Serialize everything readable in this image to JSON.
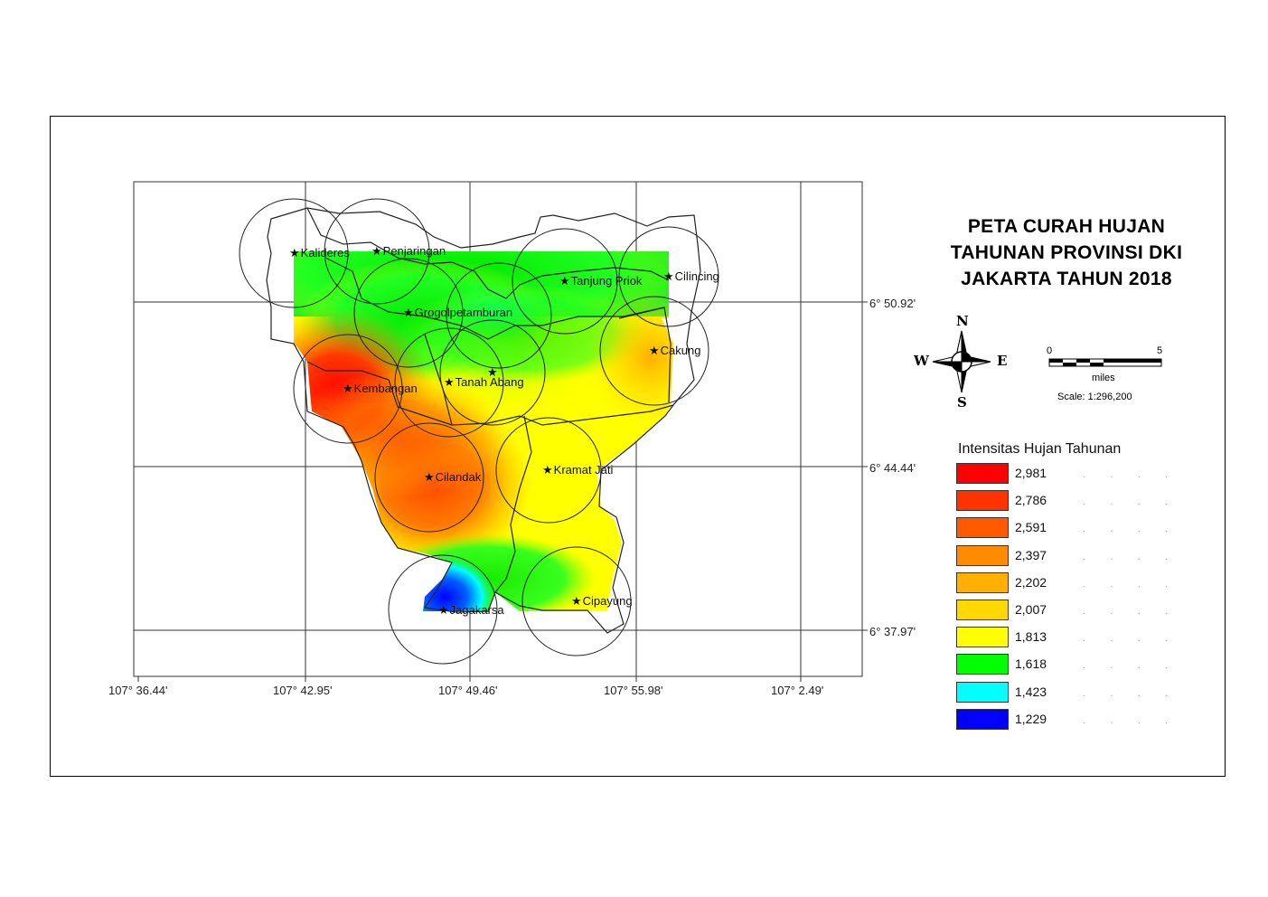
{
  "title_lines": [
    "PETA CURAH HUJAN",
    "TAHUNAN PROVINSI DKI",
    "JAKARTA TAHUN 2018"
  ],
  "compass": {
    "n": "N",
    "s": "S",
    "e": "E",
    "w": "W"
  },
  "scale": {
    "start": "0",
    "end": "5",
    "unit": "miles",
    "ratio": "Scale: 1:296,200"
  },
  "legend": {
    "title": "Intensitas Hujan Tahunan",
    "items": [
      {
        "label": "2,981",
        "color": "#ff0000"
      },
      {
        "label": "2,786",
        "color": "#ff3300"
      },
      {
        "label": "2,591",
        "color": "#ff5a00"
      },
      {
        "label": "2,397",
        "color": "#ff8c00"
      },
      {
        "label": "2,202",
        "color": "#ffb000"
      },
      {
        "label": "2,007",
        "color": "#ffd800"
      },
      {
        "label": "1,813",
        "color": "#ffff00"
      },
      {
        "label": "1,618",
        "color": "#00ff00"
      },
      {
        "label": "1,423",
        "color": "#00ffff"
      },
      {
        "label": "1,229",
        "color": "#0000ff"
      }
    ]
  },
  "lon_labels": [
    "107° 36.44'",
    "107° 42.95'",
    "107° 49.46'",
    "107° 55.98'",
    "107° 2.49'"
  ],
  "lat_labels": [
    "6° 50.92'",
    "6° 44.44'",
    "6° 37.97'"
  ],
  "stations": [
    {
      "name": "Kalideres"
    },
    {
      "name": "Penjaringan"
    },
    {
      "name": "Tanjung Priok"
    },
    {
      "name": "Cilincing"
    },
    {
      "name": "Grogolpetamburan"
    },
    {
      "name": "Cakung"
    },
    {
      "name": "Kembangan"
    },
    {
      "name": "Tanah Abang"
    },
    {
      "name": "Cilandak"
    },
    {
      "name": "Kramat Jati"
    },
    {
      "name": "Jagakarsa"
    },
    {
      "name": "Cipayung"
    }
  ]
}
